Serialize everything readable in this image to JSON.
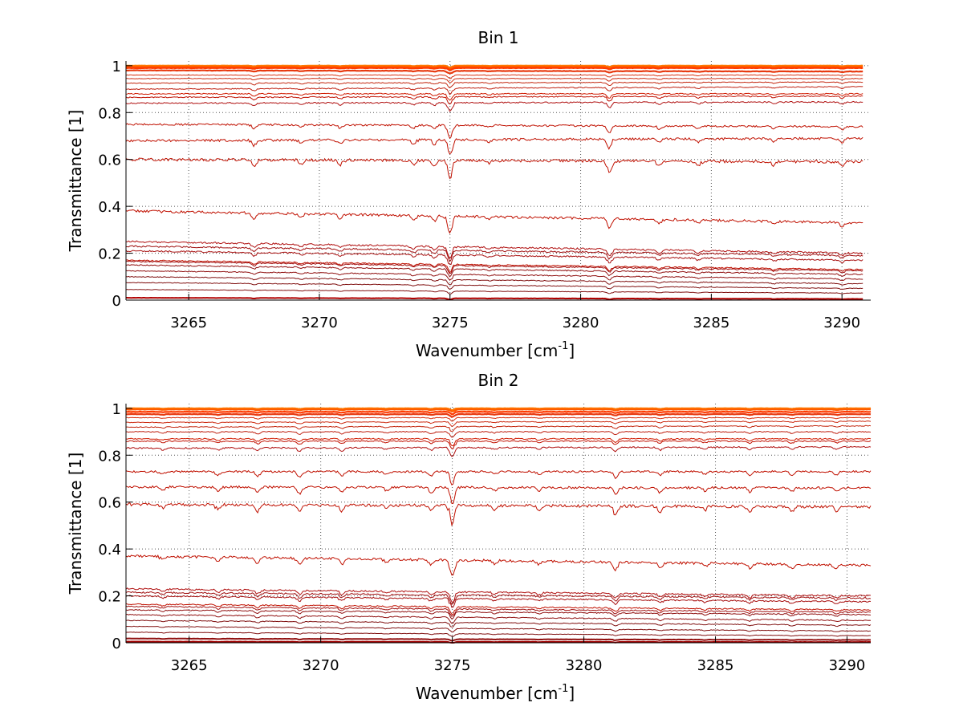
{
  "chart_data": [
    {
      "type": "line",
      "title": "Bin 1",
      "xlabel": "Wavenumber [cm-1]",
      "xlabel_main": "Wavenumber [cm",
      "xlabel_sup": "-1",
      "xlabel_end": "]",
      "ylabel": "Transmittance [1]",
      "xlim": [
        3262.6,
        3291.1
      ],
      "ylim": [
        0,
        1.02
      ],
      "xticks": [
        3265,
        3270,
        3275,
        3280,
        3285,
        3290
      ],
      "xtick_labels": [
        "3265",
        "3270",
        "3275",
        "3280",
        "3285",
        "3290"
      ],
      "yticks": [
        0,
        0.2,
        0.4,
        0.6,
        0.8,
        1
      ],
      "ytick_labels": [
        "0",
        "0.2",
        "0.4",
        "0.6",
        "0.8",
        "1"
      ],
      "grid": true,
      "x_range_data": [
        3262.6,
        3290.8
      ],
      "absorption_dips": [
        {
          "x": 3267.5,
          "depth": 0.35
        },
        {
          "x": 3269.3,
          "depth": 0.2
        },
        {
          "x": 3270.8,
          "depth": 0.25
        },
        {
          "x": 3273.6,
          "depth": 0.25
        },
        {
          "x": 3274.4,
          "depth": 0.3
        },
        {
          "x": 3275.0,
          "depth": 1.0
        },
        {
          "x": 3276.5,
          "depth": 0.15
        },
        {
          "x": 3281.1,
          "depth": 0.6
        },
        {
          "x": 3283.0,
          "depth": 0.25
        },
        {
          "x": 3284.5,
          "depth": 0.2
        },
        {
          "x": 3287.4,
          "depth": 0.2
        },
        {
          "x": 3290.0,
          "depth": 0.25
        }
      ],
      "series": [
        {
          "start": 1.0,
          "end": 1.0,
          "color": "#ff7a00"
        },
        {
          "start": 0.995,
          "end": 0.995,
          "color": "#ff5a00"
        },
        {
          "start": 0.99,
          "end": 0.99,
          "color": "#ff3a00"
        },
        {
          "start": 0.98,
          "end": 0.975,
          "color": "#e83a10"
        },
        {
          "start": 0.96,
          "end": 0.96,
          "color": "#d83010"
        },
        {
          "start": 0.945,
          "end": 0.945,
          "color": "#cc2a10"
        },
        {
          "start": 0.925,
          "end": 0.93,
          "color": "#c42810"
        },
        {
          "start": 0.9,
          "end": 0.91,
          "color": "#bf2010"
        },
        {
          "start": 0.88,
          "end": 0.88,
          "color": "#d01a00"
        },
        {
          "start": 0.865,
          "end": 0.87,
          "color": "#c01000"
        },
        {
          "start": 0.84,
          "end": 0.845,
          "color": "#b01010"
        },
        {
          "start": 0.75,
          "end": 0.74,
          "color": "#c01000"
        },
        {
          "start": 0.68,
          "end": 0.69,
          "color": "#c01000"
        },
        {
          "start": 0.6,
          "end": 0.59,
          "color": "#c01000"
        },
        {
          "start": 0.38,
          "end": 0.33,
          "color": "#c01000"
        },
        {
          "start": 0.25,
          "end": 0.2,
          "color": "#b01010"
        },
        {
          "start": 0.23,
          "end": 0.19,
          "color": "#a01010"
        },
        {
          "start": 0.21,
          "end": 0.17,
          "color": "#a81010"
        },
        {
          "start": 0.17,
          "end": 0.13,
          "color": "#c01000"
        },
        {
          "start": 0.165,
          "end": 0.125,
          "color": "#a01010"
        },
        {
          "start": 0.15,
          "end": 0.11,
          "color": "#901010"
        },
        {
          "start": 0.125,
          "end": 0.09,
          "color": "#901010"
        },
        {
          "start": 0.1,
          "end": 0.07,
          "color": "#801010"
        },
        {
          "start": 0.075,
          "end": 0.05,
          "color": "#801010"
        },
        {
          "start": 0.045,
          "end": 0.03,
          "color": "#801010"
        },
        {
          "start": 0.01,
          "end": 0.005,
          "color": "#b00000"
        }
      ]
    },
    {
      "type": "line",
      "title": "Bin 2",
      "xlabel": "Wavenumber [cm-1]",
      "xlabel_main": "Wavenumber [cm",
      "xlabel_sup": "-1",
      "xlabel_end": "]",
      "ylabel": "Transmittance [1]",
      "xlim": [
        3262.6,
        3290.9
      ],
      "ylim": [
        0,
        1.02
      ],
      "xticks": [
        3265,
        3270,
        3275,
        3280,
        3285,
        3290
      ],
      "xtick_labels": [
        "3265",
        "3270",
        "3275",
        "3280",
        "3285",
        "3290"
      ],
      "yticks": [
        0,
        0.2,
        0.4,
        0.6,
        0.8,
        1
      ],
      "ytick_labels": [
        "0",
        "0.2",
        "0.4",
        "0.6",
        "0.8",
        "1"
      ],
      "grid": true,
      "x_range_data": [
        3262.6,
        3290.9
      ],
      "absorption_dips": [
        {
          "x": 3264.0,
          "depth": 0.2
        },
        {
          "x": 3266.1,
          "depth": 0.25
        },
        {
          "x": 3267.6,
          "depth": 0.35
        },
        {
          "x": 3269.2,
          "depth": 0.4
        },
        {
          "x": 3270.8,
          "depth": 0.35
        },
        {
          "x": 3272.5,
          "depth": 0.2
        },
        {
          "x": 3274.2,
          "depth": 0.3
        },
        {
          "x": 3275.0,
          "depth": 1.0
        },
        {
          "x": 3276.6,
          "depth": 0.2
        },
        {
          "x": 3278.3,
          "depth": 0.2
        },
        {
          "x": 3281.2,
          "depth": 0.45
        },
        {
          "x": 3282.9,
          "depth": 0.3
        },
        {
          "x": 3284.6,
          "depth": 0.2
        },
        {
          "x": 3286.3,
          "depth": 0.25
        },
        {
          "x": 3287.9,
          "depth": 0.25
        },
        {
          "x": 3289.6,
          "depth": 0.25
        }
      ],
      "series": [
        {
          "start": 1.0,
          "end": 1.0,
          "color": "#ff7a00"
        },
        {
          "start": 0.995,
          "end": 0.995,
          "color": "#ff5a00"
        },
        {
          "start": 0.985,
          "end": 0.985,
          "color": "#ff3a00"
        },
        {
          "start": 0.975,
          "end": 0.975,
          "color": "#e83a10"
        },
        {
          "start": 0.96,
          "end": 0.96,
          "color": "#d83010"
        },
        {
          "start": 0.94,
          "end": 0.945,
          "color": "#cc2a10"
        },
        {
          "start": 0.92,
          "end": 0.925,
          "color": "#c42810"
        },
        {
          "start": 0.9,
          "end": 0.9,
          "color": "#bf2010"
        },
        {
          "start": 0.87,
          "end": 0.87,
          "color": "#d01a00"
        },
        {
          "start": 0.86,
          "end": 0.86,
          "color": "#c01000"
        },
        {
          "start": 0.83,
          "end": 0.835,
          "color": "#b01010"
        },
        {
          "start": 0.73,
          "end": 0.73,
          "color": "#c01000"
        },
        {
          "start": 0.665,
          "end": 0.66,
          "color": "#c01000"
        },
        {
          "start": 0.59,
          "end": 0.58,
          "color": "#c01000"
        },
        {
          "start": 0.37,
          "end": 0.33,
          "color": "#c01000"
        },
        {
          "start": 0.23,
          "end": 0.2,
          "color": "#b01010"
        },
        {
          "start": 0.215,
          "end": 0.19,
          "color": "#a01010"
        },
        {
          "start": 0.2,
          "end": 0.175,
          "color": "#a81010"
        },
        {
          "start": 0.165,
          "end": 0.14,
          "color": "#c01000"
        },
        {
          "start": 0.155,
          "end": 0.13,
          "color": "#a01010"
        },
        {
          "start": 0.14,
          "end": 0.12,
          "color": "#901010"
        },
        {
          "start": 0.12,
          "end": 0.095,
          "color": "#901010"
        },
        {
          "start": 0.095,
          "end": 0.075,
          "color": "#801010"
        },
        {
          "start": 0.07,
          "end": 0.05,
          "color": "#801010"
        },
        {
          "start": 0.045,
          "end": 0.03,
          "color": "#801010"
        },
        {
          "start": 0.018,
          "end": 0.012,
          "color": "#901010"
        },
        {
          "start": 0.005,
          "end": 0.003,
          "color": "#a00000"
        }
      ]
    }
  ]
}
